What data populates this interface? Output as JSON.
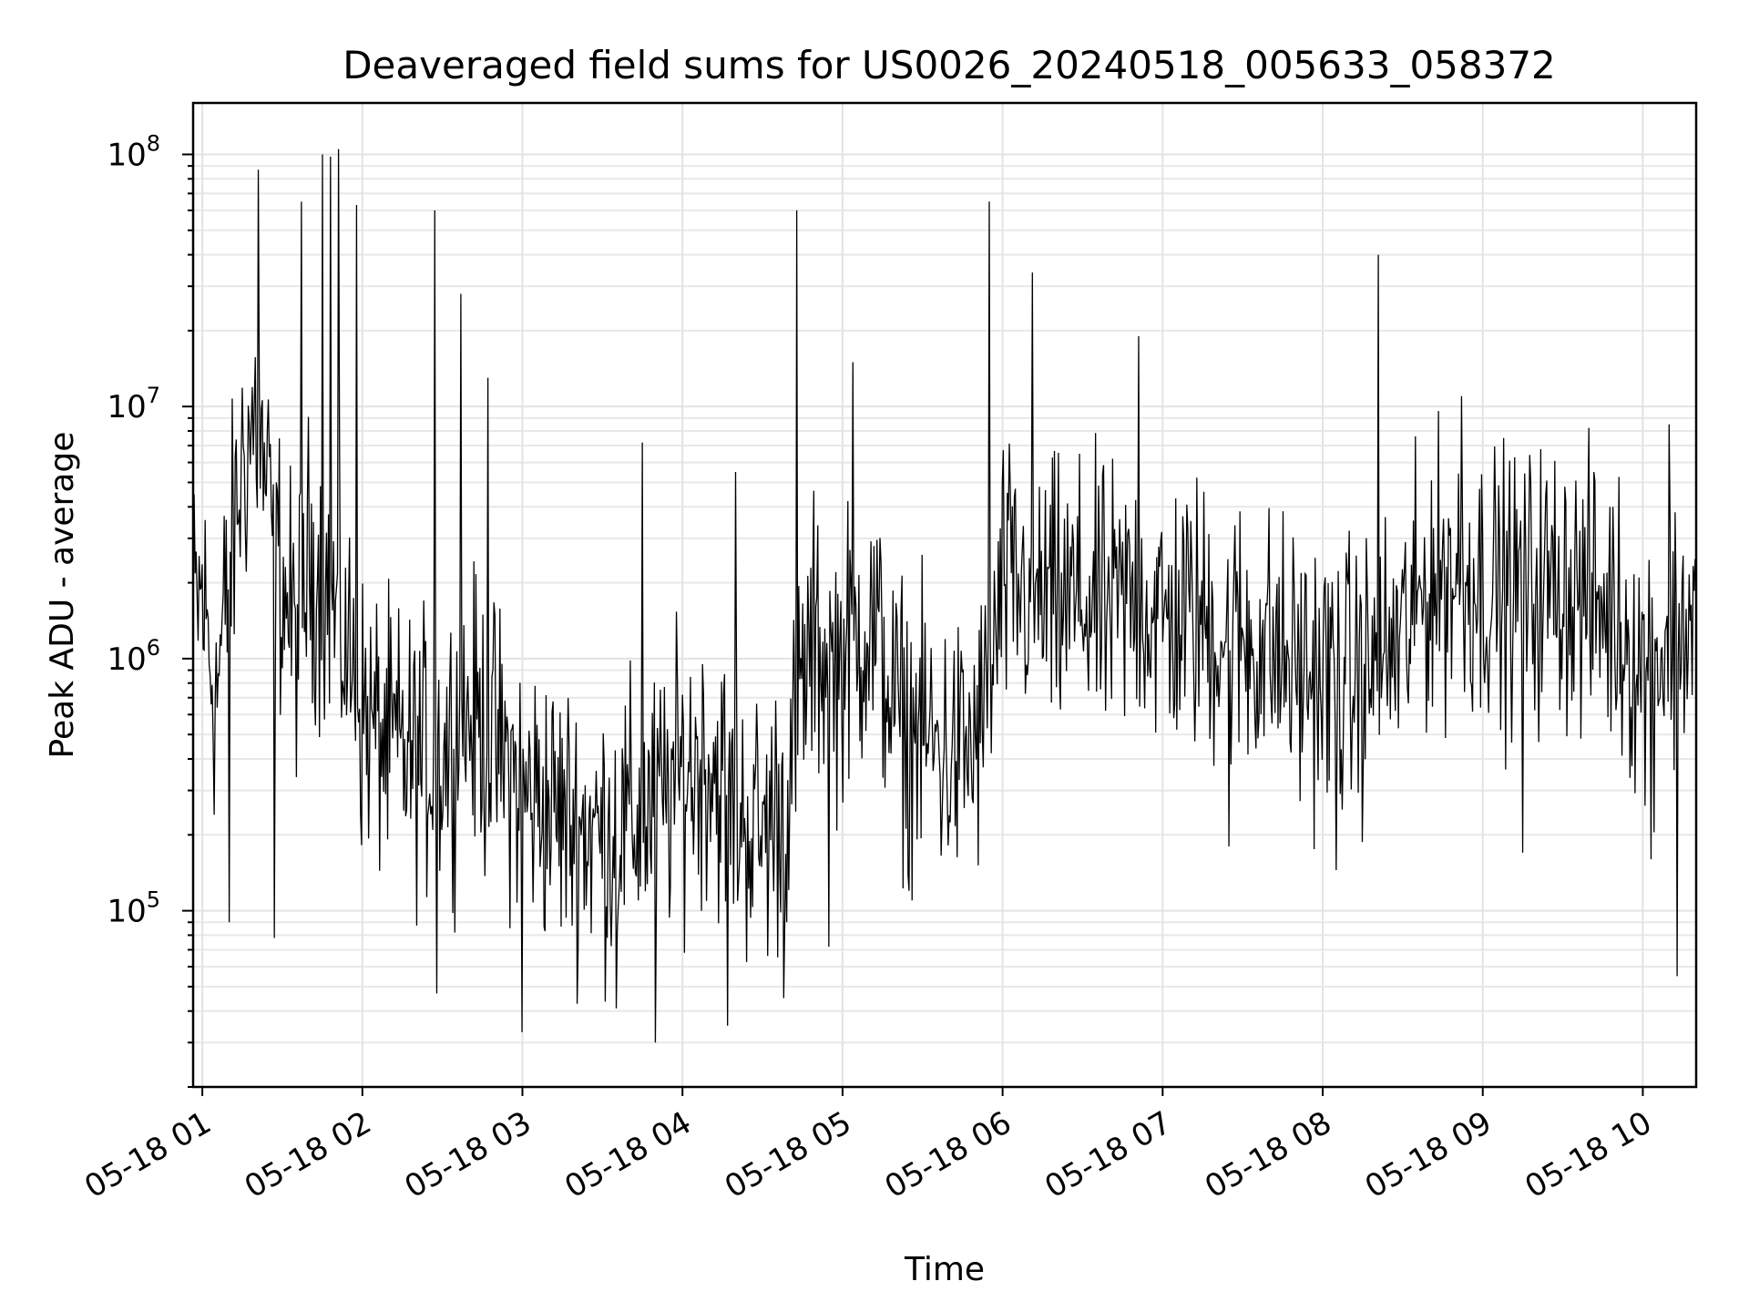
{
  "chart_data": {
    "type": "line",
    "title": "Deaveraged field sums for US0026_20240518_005633_058372",
    "xlabel": "Time",
    "ylabel": "Peak ADU - average",
    "y_scale": "log",
    "xlim": [
      "2024-05-18T00:56:33",
      "2024-05-18T10:20:00"
    ],
    "ylim": [
      20000,
      160000000
    ],
    "grid": true,
    "x_ticks": [
      {
        "t": "2024-05-18T01:00:00",
        "label": "05-18 01"
      },
      {
        "t": "2024-05-18T02:00:00",
        "label": "05-18 02"
      },
      {
        "t": "2024-05-18T03:00:00",
        "label": "05-18 03"
      },
      {
        "t": "2024-05-18T04:00:00",
        "label": "05-18 04"
      },
      {
        "t": "2024-05-18T05:00:00",
        "label": "05-18 05"
      },
      {
        "t": "2024-05-18T06:00:00",
        "label": "05-18 06"
      },
      {
        "t": "2024-05-18T07:00:00",
        "label": "05-18 07"
      },
      {
        "t": "2024-05-18T08:00:00",
        "label": "05-18 08"
      },
      {
        "t": "2024-05-18T09:00:00",
        "label": "05-18 09"
      },
      {
        "t": "2024-05-18T10:00:00",
        "label": "05-18 10"
      }
    ],
    "y_ticks": [
      {
        "v": 100000,
        "base": "10",
        "exp": "5"
      },
      {
        "v": 1000000,
        "base": "10",
        "exp": "6"
      },
      {
        "v": 10000000,
        "base": "10",
        "exp": "7"
      },
      {
        "v": 100000000,
        "base": "10",
        "exp": "8"
      }
    ],
    "line_color": "#000000",
    "grid_color": "#e3e3e3",
    "series": [
      {
        "points": [
          [
            "2024-05-18T00:56:33",
            1500000
          ],
          [
            "2024-05-18T01:00:00",
            1800000
          ],
          [
            "2024-05-18T01:05:00",
            700000
          ],
          [
            "2024-05-18T01:10:00",
            2000000
          ],
          [
            "2024-05-18T01:15:00",
            6000000
          ],
          [
            "2024-05-18T01:20:00",
            9000000
          ],
          [
            "2024-05-18T01:25:00",
            4000000
          ],
          [
            "2024-05-18T01:30:00",
            2000000
          ],
          [
            "2024-05-18T01:35:00",
            1200000
          ],
          [
            "2024-05-18T01:40:00",
            2500000
          ],
          [
            "2024-05-18T01:45:00",
            2000000
          ],
          [
            "2024-05-18T01:50:00",
            1500000
          ],
          [
            "2024-05-18T01:55:00",
            1000000
          ],
          [
            "2024-05-18T02:00:00",
            600000
          ],
          [
            "2024-05-18T02:10:00",
            450000
          ],
          [
            "2024-05-18T02:20:00",
            400000
          ],
          [
            "2024-05-18T02:30:00",
            420000
          ],
          [
            "2024-05-18T02:40:00",
            600000
          ],
          [
            "2024-05-18T02:50:00",
            450000
          ],
          [
            "2024-05-18T03:00:00",
            300000
          ],
          [
            "2024-05-18T03:10:00",
            260000
          ],
          [
            "2024-05-18T03:20:00",
            220000
          ],
          [
            "2024-05-18T03:30:00",
            200000
          ],
          [
            "2024-05-18T03:40:00",
            220000
          ],
          [
            "2024-05-18T03:50:00",
            250000
          ],
          [
            "2024-05-18T04:00:00",
            350000
          ],
          [
            "2024-05-18T04:10:00",
            400000
          ],
          [
            "2024-05-18T04:20:00",
            250000
          ],
          [
            "2024-05-18T04:30:00",
            200000
          ],
          [
            "2024-05-18T04:40:00",
            300000
          ],
          [
            "2024-05-18T04:45:00",
            800000
          ],
          [
            "2024-05-18T04:50:00",
            1200000
          ],
          [
            "2024-05-18T04:55:00",
            900000
          ],
          [
            "2024-05-18T05:00:00",
            1000000
          ],
          [
            "2024-05-18T05:05:00",
            1200000
          ],
          [
            "2024-05-18T05:10:00",
            1400000
          ],
          [
            "2024-05-18T05:15:00",
            1000000
          ],
          [
            "2024-05-18T05:20:00",
            600000
          ],
          [
            "2024-05-18T05:30:00",
            500000
          ],
          [
            "2024-05-18T05:40:00",
            400000
          ],
          [
            "2024-05-18T05:50:00",
            450000
          ],
          [
            "2024-05-18T05:56:00",
            800000
          ],
          [
            "2024-05-18T06:00:00",
            2000000
          ],
          [
            "2024-05-18T06:10:00",
            1800000
          ],
          [
            "2024-05-18T06:20:00",
            1600000
          ],
          [
            "2024-05-18T06:30:00",
            1700000
          ],
          [
            "2024-05-18T06:40:00",
            1500000
          ],
          [
            "2024-05-18T06:50:00",
            1800000
          ],
          [
            "2024-05-18T07:00:00",
            1400000
          ],
          [
            "2024-05-18T07:10:00",
            1500000
          ],
          [
            "2024-05-18T07:20:00",
            1300000
          ],
          [
            "2024-05-18T07:30:00",
            1200000
          ],
          [
            "2024-05-18T07:40:00",
            1100000
          ],
          [
            "2024-05-18T07:50:00",
            900000
          ],
          [
            "2024-05-18T08:00:00",
            850000
          ],
          [
            "2024-05-18T08:10:00",
            800000
          ],
          [
            "2024-05-18T08:20:00",
            900000
          ],
          [
            "2024-05-18T08:30:00",
            1200000
          ],
          [
            "2024-05-18T08:40:00",
            2000000
          ],
          [
            "2024-05-18T08:50:00",
            2200000
          ],
          [
            "2024-05-18T09:00:00",
            2000000
          ],
          [
            "2024-05-18T09:10:00",
            1800000
          ],
          [
            "2024-05-18T09:20:00",
            1900000
          ],
          [
            "2024-05-18T09:30:00",
            2000000
          ],
          [
            "2024-05-18T09:40:00",
            1700000
          ],
          [
            "2024-05-18T09:50:00",
            1500000
          ],
          [
            "2024-05-18T10:00:00",
            900000
          ],
          [
            "2024-05-18T10:10:00",
            1200000
          ],
          [
            "2024-05-18T10:20:00",
            1500000
          ]
        ],
        "spikes": [
          [
            "2024-05-18T01:21:00",
            87000000
          ],
          [
            "2024-05-18T01:37:00",
            65000000
          ],
          [
            "2024-05-18T01:45:00",
            100000000
          ],
          [
            "2024-05-18T01:48:00",
            98000000
          ],
          [
            "2024-05-18T01:51:00",
            105000000
          ],
          [
            "2024-05-18T01:58:00",
            63000000
          ],
          [
            "2024-05-18T02:27:00",
            60000000
          ],
          [
            "2024-05-18T02:37:00",
            28000000
          ],
          [
            "2024-05-18T02:47:00",
            13000000
          ],
          [
            "2024-05-18T03:45:00",
            7200000
          ],
          [
            "2024-05-18T04:20:00",
            5500000
          ],
          [
            "2024-05-18T04:43:00",
            60000000
          ],
          [
            "2024-05-18T05:04:00",
            15000000
          ],
          [
            "2024-05-18T05:55:00",
            65000000
          ],
          [
            "2024-05-18T06:11:00",
            34000000
          ],
          [
            "2024-05-18T06:51:00",
            19000000
          ],
          [
            "2024-05-18T08:21:00",
            40000000
          ],
          [
            "2024-05-18T08:52:00",
            11000000
          ],
          [
            "2024-05-18T10:10:00",
            8500000
          ]
        ],
        "dips": [
          [
            "2024-05-18T01:10:00",
            90000
          ],
          [
            "2024-05-18T01:27:00",
            78000
          ],
          [
            "2024-05-18T02:28:00",
            47000
          ],
          [
            "2024-05-18T03:00:00",
            33000
          ],
          [
            "2024-05-18T03:35:00",
            41000
          ],
          [
            "2024-05-18T03:50:00",
            30000
          ],
          [
            "2024-05-18T04:17:00",
            35000
          ],
          [
            "2024-05-18T04:38:00",
            45000
          ],
          [
            "2024-05-18T04:55:00",
            72000
          ],
          [
            "2024-05-18T05:25:00",
            120000
          ],
          [
            "2024-05-18T07:25:00",
            180000
          ],
          [
            "2024-05-18T08:05:00",
            145000
          ],
          [
            "2024-05-18T09:15:00",
            170000
          ],
          [
            "2024-05-18T10:03:00",
            160000
          ],
          [
            "2024-05-18T10:13:00",
            55000
          ]
        ]
      }
    ]
  }
}
